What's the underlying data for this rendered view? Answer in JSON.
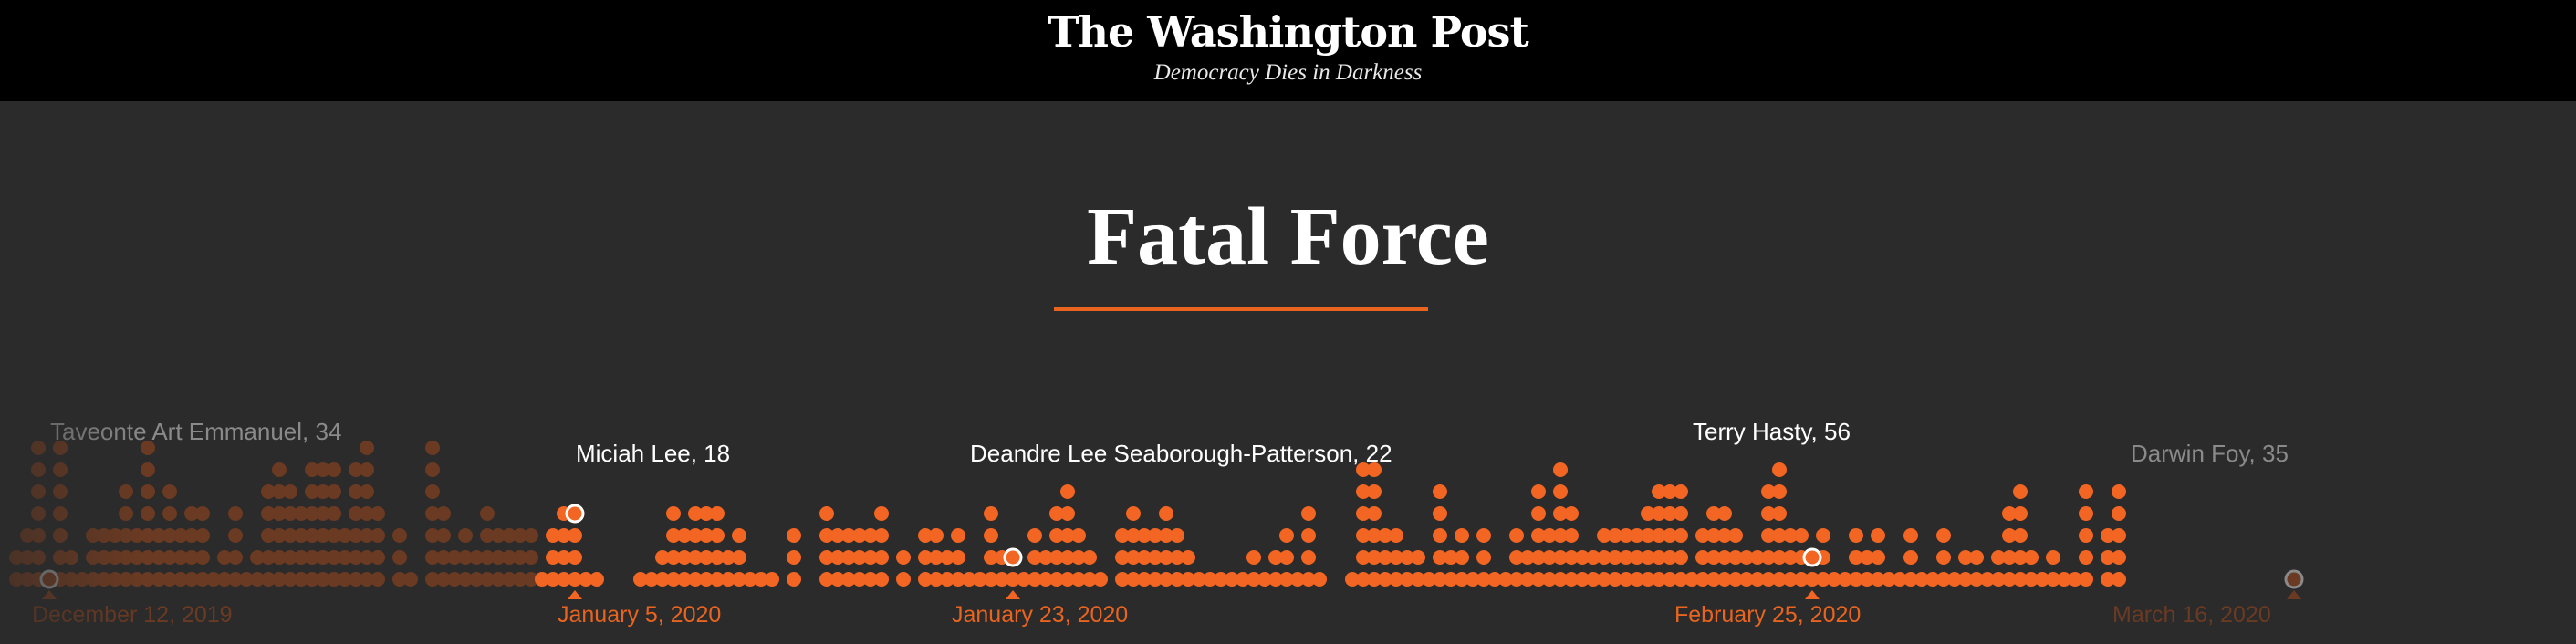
{
  "masthead": {
    "logo_text": "The Washington Post",
    "tagline": "Democracy Dies in Darkness"
  },
  "headline": {
    "title": "Fatal Force",
    "accent_color": "#e8641f"
  },
  "colors": {
    "background": "#2b2b2b",
    "masthead": "#000000",
    "dot_active": "#f26522",
    "dot_faded": "#6b3a22",
    "label_bright": "#ffffff",
    "label_dim": "#8a8a8a",
    "date_active": "#e8641f",
    "date_faded": "#6b3a22"
  },
  "victims": [
    {
      "name": "Taveonte Art Emmanuel, 34",
      "faded": true
    },
    {
      "name": "Miciah Lee, 18",
      "faded": false
    },
    {
      "name": "Deandre Lee Seaborough-Patterson, 22",
      "faded": false
    },
    {
      "name": "Terry Hasty, 56",
      "faded": false
    },
    {
      "name": "Darwin Foy, 35",
      "faded": true
    }
  ],
  "dates": [
    {
      "label": "December 12, 2019",
      "faded": true
    },
    {
      "label": "January 5, 2020",
      "faded": false
    },
    {
      "label": "January 23, 2020",
      "faded": false
    },
    {
      "label": "February 25, 2020",
      "faded": false
    },
    {
      "label": "March 16, 2020",
      "faded": true
    }
  ],
  "day_counts": [
    2,
    3,
    7,
    1,
    7,
    2,
    1,
    3,
    3,
    3,
    5,
    3,
    7,
    3,
    5,
    3,
    4,
    4,
    1,
    2,
    4,
    1,
    2,
    5,
    6,
    5,
    4,
    6,
    6,
    6,
    3,
    6,
    7,
    4,
    0,
    3,
    1,
    0,
    7,
    4,
    2,
    3,
    2,
    4,
    3,
    3,
    3,
    3,
    1,
    3,
    4,
    4,
    1,
    1,
    0,
    0,
    0,
    1,
    1,
    2,
    4,
    3,
    4,
    4,
    4,
    2,
    3,
    1,
    1,
    1,
    0,
    3,
    0,
    0,
    4,
    3,
    3,
    3,
    3,
    4,
    0,
    2,
    0,
    3,
    3,
    2,
    3,
    1,
    1,
    4,
    2,
    2,
    1,
    3,
    2,
    4,
    5,
    3,
    2,
    1,
    0,
    3,
    4,
    3,
    3,
    4,
    3,
    2,
    1,
    1,
    1,
    1,
    1,
    2,
    1,
    2,
    3,
    1,
    4,
    1,
    0,
    0,
    1,
    6,
    6,
    3,
    3,
    2,
    2,
    1,
    5,
    2,
    3,
    1,
    3,
    1,
    1,
    3,
    2,
    5,
    3,
    6,
    4,
    2,
    2,
    3,
    3,
    3,
    3,
    4,
    5,
    5,
    5,
    1,
    3,
    4,
    4,
    3,
    2,
    2,
    5,
    6,
    3,
    3,
    2,
    3,
    1,
    1,
    3,
    2,
    3,
    1,
    1,
    3,
    1,
    1,
    3,
    1,
    2,
    2,
    1,
    2,
    4,
    5,
    2,
    1,
    2,
    1,
    1,
    5,
    0,
    3,
    5,
    0,
    0,
    0
  ]
}
